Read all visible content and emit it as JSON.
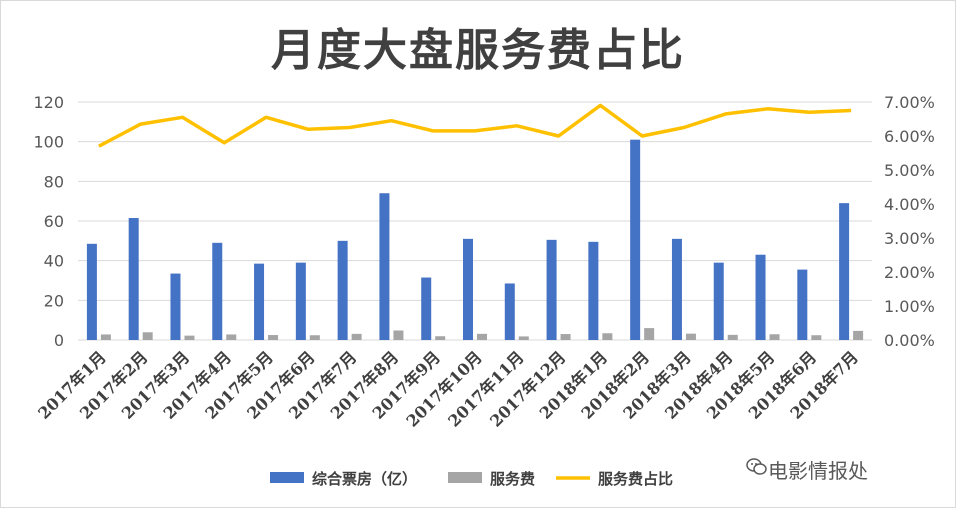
{
  "chart_data": {
    "type": "bar",
    "title": "月度大盘服务费占比",
    "categories": [
      "2017年1月",
      "2017年2月",
      "2017年3月",
      "2017年4月",
      "2017年5月",
      "2017年6月",
      "2017年7月",
      "2017年8月",
      "2017年9月",
      "2017年10月",
      "2017年11月",
      "2017年12月",
      "2018年1月",
      "2018年2月",
      "2018年3月",
      "2018年4月",
      "2018年5月",
      "2018年6月",
      "2018年7月"
    ],
    "series": [
      {
        "name": "综合票房（亿）",
        "type": "bar",
        "axis": "left",
        "color": "#4472c4",
        "values": [
          48.5,
          61.5,
          33.5,
          49,
          38.5,
          39,
          50,
          74,
          31.5,
          51,
          28.5,
          50.5,
          49.5,
          101,
          51,
          39,
          43,
          35.5,
          69
        ]
      },
      {
        "name": "服务费",
        "type": "bar",
        "axis": "left",
        "color": "#a5a5a5",
        "values": [
          2.8,
          3.9,
          2.2,
          2.8,
          2.5,
          2.4,
          3.1,
          4.8,
          1.9,
          3.1,
          1.8,
          3.0,
          3.4,
          6.0,
          3.2,
          2.6,
          2.9,
          2.4,
          4.6
        ]
      },
      {
        "name": "服务费占比",
        "type": "line",
        "axis": "right",
        "color": "#ffc000",
        "values": [
          5.7,
          6.35,
          6.55,
          5.8,
          6.55,
          6.2,
          6.25,
          6.45,
          6.15,
          6.15,
          6.3,
          6.0,
          6.9,
          6.0,
          6.25,
          6.65,
          6.8,
          6.7,
          6.75
        ]
      }
    ],
    "y_left": {
      "ylim": [
        0,
        120
      ],
      "ticks": [
        "0",
        "20",
        "40",
        "60",
        "80",
        "100",
        "120"
      ]
    },
    "y_right": {
      "ylim": [
        0,
        7
      ],
      "ticks": [
        "0.00%",
        "1.00%",
        "2.00%",
        "3.00%",
        "4.00%",
        "5.00%",
        "6.00%",
        "7.00%"
      ]
    },
    "grid": true,
    "legend_position": "bottom"
  },
  "watermark": {
    "text": "电影情报处",
    "icon": "wechat-icon"
  }
}
